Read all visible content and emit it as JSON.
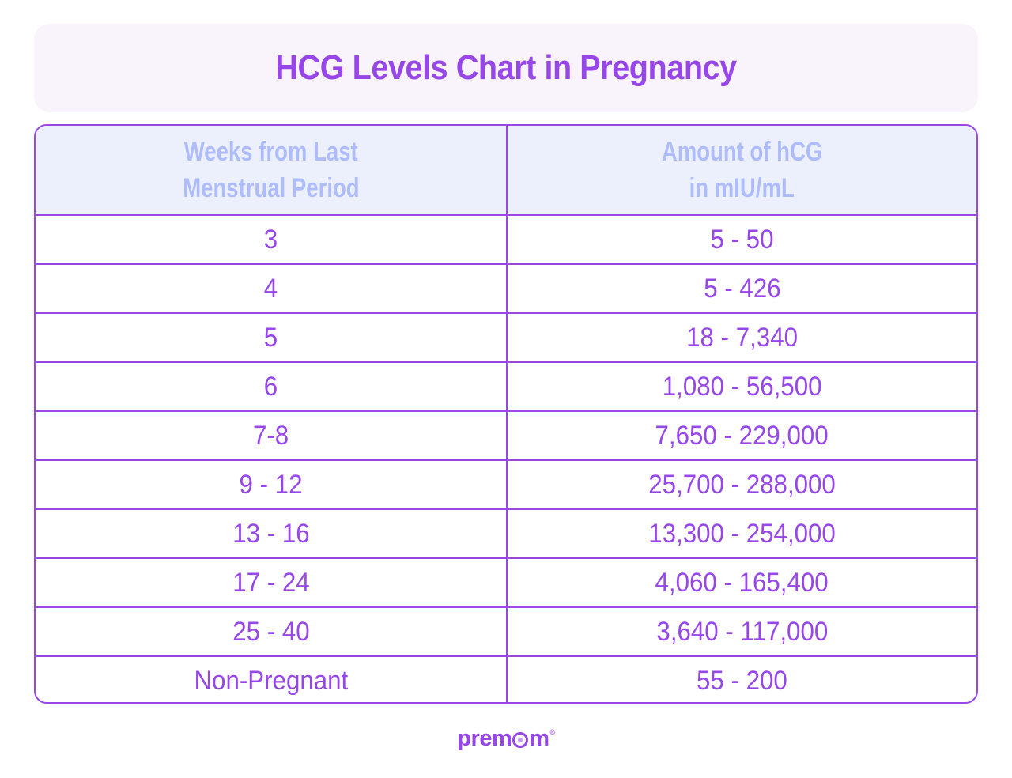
{
  "title": "HCG Levels Chart in Pregnancy",
  "colors": {
    "accent": "#9747e8",
    "header_bg": "#ecf0fd",
    "header_text": "#aebcfc",
    "title_bg": "#f9f3fc"
  },
  "table": {
    "headers": [
      {
        "line1": "Weeks from Last",
        "line2": "Menstrual Period"
      },
      {
        "line1": "Amount of hCG",
        "line2": "in mIU/mL"
      }
    ],
    "rows": [
      {
        "weeks": "3",
        "hcg": "5 - 50"
      },
      {
        "weeks": "4",
        "hcg": "5 - 426"
      },
      {
        "weeks": "5",
        "hcg": "18 - 7,340"
      },
      {
        "weeks": "6",
        "hcg": "1,080 - 56,500"
      },
      {
        "weeks": "7-8",
        "hcg": "7,650 - 229,000"
      },
      {
        "weeks": "9 - 12",
        "hcg": "25,700 - 288,000"
      },
      {
        "weeks": "13 - 16",
        "hcg": "13,300 - 254,000"
      },
      {
        "weeks": "17 - 24",
        "hcg": "4,060 - 165,400"
      },
      {
        "weeks": "25 - 40",
        "hcg": "3,640 - 117,000"
      },
      {
        "weeks": "Non-Pregnant",
        "hcg": "55 - 200"
      }
    ]
  },
  "logo": {
    "prefix": "prem",
    "suffix": "m",
    "mark": "®"
  },
  "chart_data": {
    "type": "table",
    "title": "HCG Levels Chart in Pregnancy",
    "columns": [
      "Weeks from Last Menstrual Period",
      "Amount of hCG in mIU/mL"
    ],
    "rows": [
      [
        "3",
        "5 - 50"
      ],
      [
        "4",
        "5 - 426"
      ],
      [
        "5",
        "18 - 7,340"
      ],
      [
        "6",
        "1,080 - 56,500"
      ],
      [
        "7-8",
        "7,650 - 229,000"
      ],
      [
        "9 - 12",
        "25,700 - 288,000"
      ],
      [
        "13 - 16",
        "13,300 - 254,000"
      ],
      [
        "17 - 24",
        "4,060 - 165,400"
      ],
      [
        "25 - 40",
        "3,640 - 117,000"
      ],
      [
        "Non-Pregnant",
        "55 - 200"
      ]
    ],
    "ranges": [
      {
        "category": "3",
        "min": 5,
        "max": 50
      },
      {
        "category": "4",
        "min": 5,
        "max": 426
      },
      {
        "category": "5",
        "min": 18,
        "max": 7340
      },
      {
        "category": "6",
        "min": 1080,
        "max": 56500
      },
      {
        "category": "7-8",
        "min": 7650,
        "max": 229000
      },
      {
        "category": "9 - 12",
        "min": 25700,
        "max": 288000
      },
      {
        "category": "13 - 16",
        "min": 13300,
        "max": 254000
      },
      {
        "category": "17 - 24",
        "min": 4060,
        "max": 165400
      },
      {
        "category": "25 - 40",
        "min": 3640,
        "max": 117000
      },
      {
        "category": "Non-Pregnant",
        "min": 55,
        "max": 200
      }
    ]
  }
}
